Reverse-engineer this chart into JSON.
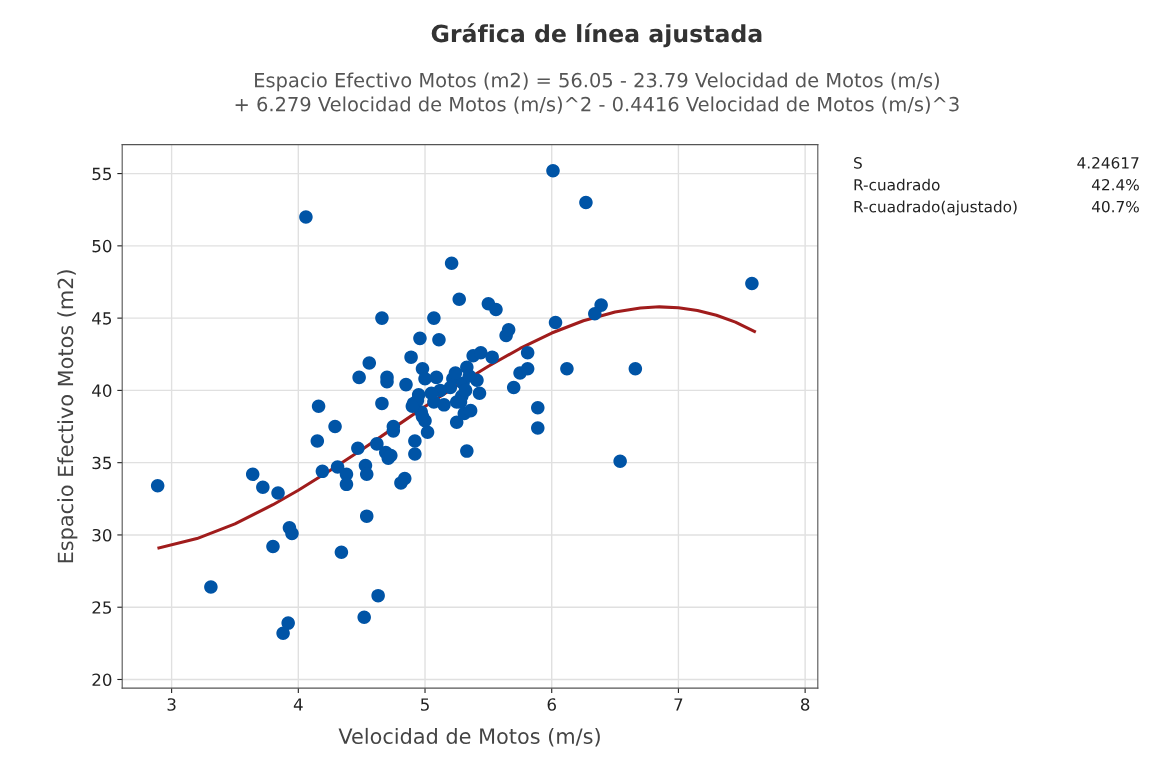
{
  "chart_data": {
    "type": "scatter",
    "title": "Gráfica de línea ajustada",
    "subtitle": "Espacio Efectivo Motos (m2) = 56.05 - 23.79 Velocidad de Motos (m/s)\n+ 6.279 Velocidad de Motos (m/s)^2 - 0.4416 Velocidad de Motos (m/s)^3",
    "xlabel": "Velocidad de Motos (m/s)",
    "ylabel": "Espacio Efectivo Motos (m2)",
    "annotations": [
      "S",
      "4.24617",
      "R-cuadrado",
      "42.4%",
      "R-cuadrado(ajustado)",
      "40.7%"
    ],
    "xlim": [
      2.61,
      8.1
    ],
    "ylim": [
      19.4,
      57.0
    ],
    "xticks": [
      3,
      4,
      5,
      6,
      7,
      8
    ],
    "yticks": [
      20,
      25,
      30,
      35,
      40,
      45,
      50,
      55
    ],
    "grid": true,
    "legend": false,
    "marker": "circle",
    "series": [
      {
        "color": "#0054a6",
        "x": [
          2.89,
          3.31,
          3.64,
          3.72,
          3.84,
          3.8,
          3.93,
          3.95,
          3.92,
          3.88,
          4.06,
          4.16,
          4.15,
          4.19,
          4.29,
          4.31,
          4.34,
          4.38,
          4.38,
          4.47,
          4.48,
          4.52,
          4.54,
          4.53,
          4.54,
          4.56,
          4.62,
          4.63,
          4.66,
          4.66,
          4.7,
          4.7,
          4.69,
          4.71,
          4.73,
          4.75,
          4.75,
          4.81,
          4.84,
          4.85,
          4.89,
          4.91,
          4.92,
          4.92,
          4.95,
          4.97,
          4.96,
          4.98,
          5.0,
          5.02,
          5.07,
          5.07,
          5.11,
          5.09,
          5.21,
          5.22,
          5.25,
          5.25,
          5.27,
          5.29,
          5.31,
          5.33,
          5.33,
          5.38,
          5.36,
          5.41,
          5.43,
          5.44,
          5.53,
          5.5,
          5.56,
          5.64,
          5.66,
          5.7,
          5.75,
          5.81,
          5.81,
          5.89,
          5.89,
          6.12,
          6.03,
          6.01,
          6.27,
          6.39,
          6.34,
          6.66,
          6.54,
          7.58,
          5.15,
          5.2,
          5.28,
          5.3,
          5.35,
          5.32,
          5.24,
          5.12,
          5.05,
          5.0,
          4.98,
          4.94,
          4.9
        ],
        "values": [
          33.4,
          26.4,
          34.2,
          33.3,
          32.9,
          29.2,
          30.5,
          30.1,
          23.9,
          23.2,
          52.0,
          38.9,
          36.5,
          34.4,
          37.5,
          34.7,
          28.8,
          34.2,
          33.5,
          36.0,
          40.9,
          24.3,
          31.3,
          34.8,
          34.2,
          41.9,
          36.3,
          25.8,
          45.0,
          39.1,
          40.9,
          40.6,
          35.7,
          35.3,
          35.5,
          37.2,
          37.5,
          33.6,
          33.9,
          40.4,
          42.3,
          39.1,
          36.5,
          35.6,
          39.7,
          38.5,
          43.6,
          41.5,
          37.9,
          37.1,
          45.0,
          39.2,
          43.5,
          40.9,
          48.8,
          40.8,
          39.2,
          37.8,
          46.3,
          39.6,
          38.4,
          35.8,
          41.6,
          42.4,
          38.6,
          40.7,
          39.8,
          42.6,
          42.3,
          46.0,
          45.6,
          43.8,
          44.2,
          40.2,
          41.2,
          41.5,
          42.6,
          38.8,
          37.4,
          41.5,
          44.7,
          55.2,
          53.0,
          45.9,
          45.3,
          41.5,
          35.1,
          47.4,
          39.0,
          40.2,
          39.2,
          40.5,
          41.0,
          40.0,
          41.2,
          40.0,
          39.8,
          40.8,
          38.2,
          39.3,
          38.9
        ]
      },
      {
        "type": "line",
        "color": "#a01c1c",
        "marker": "none",
        "line_style": "solid",
        "x": [
          2.9,
          3.2,
          3.5,
          3.8,
          4.0,
          4.25,
          4.5,
          4.75,
          5.0,
          5.25,
          5.5,
          5.75,
          6.0,
          6.25,
          6.5,
          6.7,
          6.85,
          7.0,
          7.15,
          7.3,
          7.45,
          7.6
        ],
        "values": [
          29.1,
          29.75,
          30.77,
          32.09,
          33.09,
          34.46,
          35.9,
          37.39,
          38.88,
          40.32,
          41.67,
          42.9,
          43.97,
          44.82,
          45.43,
          45.7,
          45.78,
          45.72,
          45.53,
          45.2,
          44.72,
          44.07
        ]
      }
    ]
  }
}
